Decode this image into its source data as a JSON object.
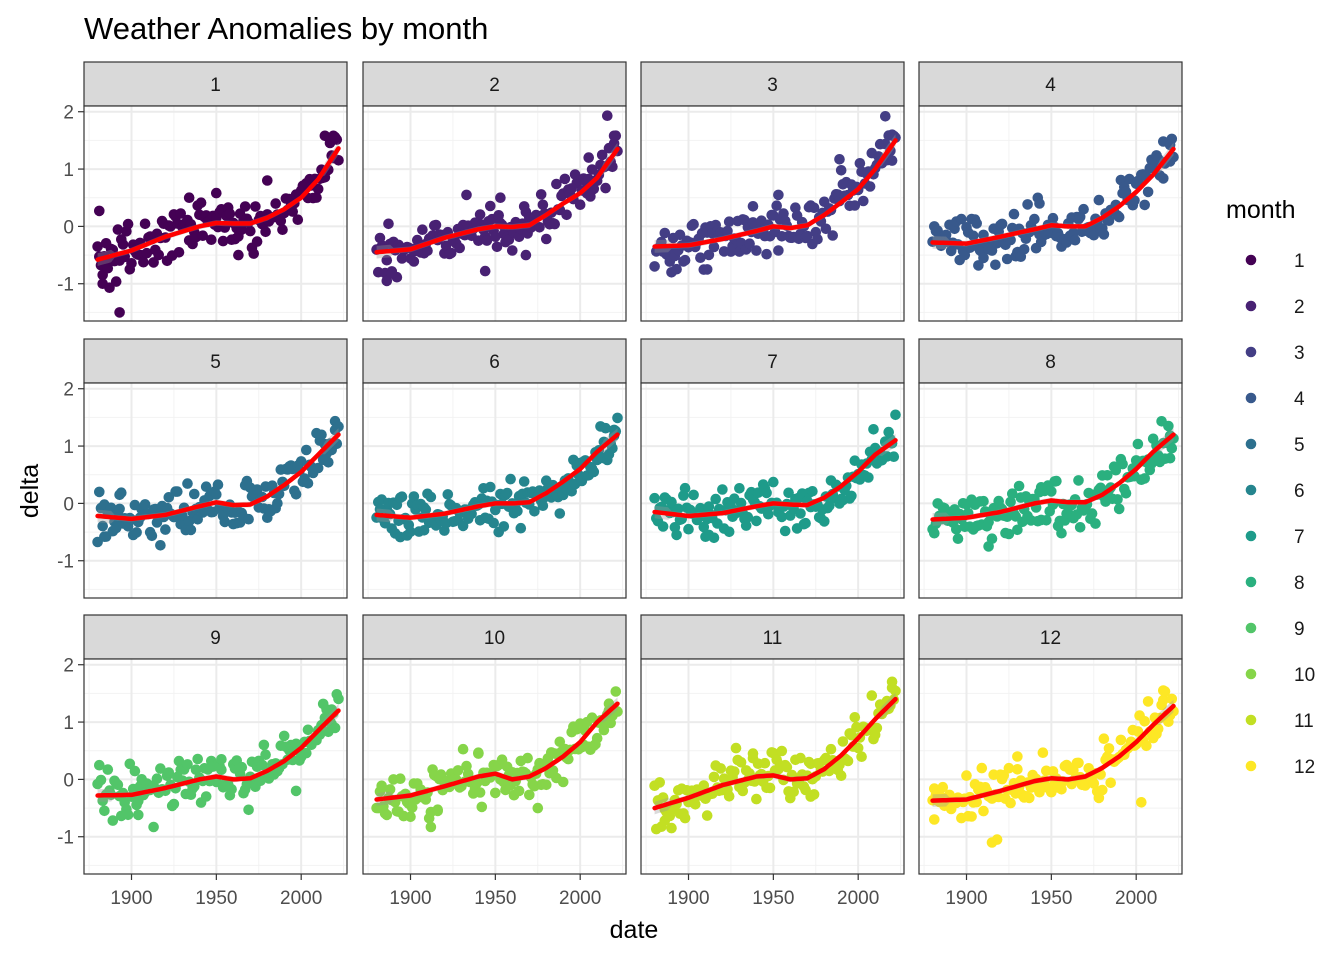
{
  "chart_data": {
    "type": "scatter",
    "title": "Weather Anomalies by month",
    "xlabel": "date",
    "ylabel": "delta",
    "xlim": [
      1872,
      2027
    ],
    "ylim": [
      -1.65,
      2.1
    ],
    "x_ticks": [
      1900,
      1950,
      2000
    ],
    "y_ticks": [
      2,
      1,
      0,
      -1
    ],
    "x_tick_labels": [
      "1900",
      "1950",
      "2000"
    ],
    "y_tick_labels": [
      "2",
      "1",
      "0",
      "-1"
    ],
    "facet_by": "month",
    "grid": true,
    "smooth_color": "#ff0000",
    "legend": {
      "title": "month",
      "position": "right",
      "entries": [
        {
          "label": "1",
          "color": "#440154"
        },
        {
          "label": "2",
          "color": "#482173"
        },
        {
          "label": "3",
          "color": "#433e85"
        },
        {
          "label": "4",
          "color": "#38598c"
        },
        {
          "label": "5",
          "color": "#2d708e"
        },
        {
          "label": "6",
          "color": "#25858e"
        },
        {
          "label": "7",
          "color": "#1e9b8a"
        },
        {
          "label": "8",
          "color": "#2ab07f"
        },
        {
          "label": "9",
          "color": "#52c569"
        },
        {
          "label": "10",
          "color": "#86d549"
        },
        {
          "label": "11",
          "color": "#c2df23"
        },
        {
          "label": "12",
          "color": "#fde725"
        }
      ]
    },
    "panels": [
      {
        "label": "1",
        "color": "#440154",
        "trend": [
          [
            1880,
            -0.58
          ],
          [
            1900,
            -0.42
          ],
          [
            1920,
            -0.18
          ],
          [
            1940,
            0.0
          ],
          [
            1950,
            0.06
          ],
          [
            1960,
            0.05
          ],
          [
            1970,
            0.05
          ],
          [
            1980,
            0.15
          ],
          [
            1990,
            0.3
          ],
          [
            2000,
            0.5
          ],
          [
            2010,
            0.82
          ],
          [
            2022,
            1.36
          ]
        ],
        "outliers": [
          [
            1883,
            -1.0
          ],
          [
            1887,
            -1.07
          ],
          [
            1893,
            -1.5
          ],
          [
            1881,
            0.27
          ],
          [
            1934,
            0.5
          ],
          [
            1950,
            0.58
          ],
          [
            1963,
            -0.5
          ],
          [
            1980,
            0.8
          ],
          [
            2014,
            1.58
          ],
          [
            2019,
            1.58
          ],
          [
            2020,
            1.55
          ]
        ]
      },
      {
        "label": "2",
        "color": "#482173",
        "trend": [
          [
            1880,
            -0.45
          ],
          [
            1900,
            -0.4
          ],
          [
            1920,
            -0.2
          ],
          [
            1940,
            -0.05
          ],
          [
            1950,
            0.0
          ],
          [
            1960,
            -0.01
          ],
          [
            1970,
            0.02
          ],
          [
            1980,
            0.2
          ],
          [
            1990,
            0.4
          ],
          [
            2000,
            0.58
          ],
          [
            2010,
            0.85
          ],
          [
            2022,
            1.35
          ]
        ],
        "outliers": [
          [
            1886,
            -0.95
          ],
          [
            1889,
            -0.82
          ],
          [
            1944,
            -0.78
          ],
          [
            1968,
            -0.5
          ],
          [
            1933,
            0.55
          ],
          [
            1953,
            0.5
          ],
          [
            2005,
            1.2
          ],
          [
            2016,
            1.93
          ],
          [
            2020,
            1.58
          ]
        ]
      },
      {
        "label": "3",
        "color": "#433e85",
        "trend": [
          [
            1880,
            -0.35
          ],
          [
            1900,
            -0.33
          ],
          [
            1920,
            -0.22
          ],
          [
            1940,
            -0.08
          ],
          [
            1950,
            0.0
          ],
          [
            1960,
            -0.03
          ],
          [
            1970,
            0.02
          ],
          [
            1980,
            0.2
          ],
          [
            1990,
            0.42
          ],
          [
            2000,
            0.65
          ],
          [
            2010,
            1.0
          ],
          [
            2022,
            1.5
          ]
        ],
        "outliers": [
          [
            1890,
            -0.8
          ],
          [
            1911,
            -0.75
          ],
          [
            1938,
            0.35
          ],
          [
            1953,
            0.55
          ],
          [
            1989,
            1.17
          ],
          [
            2016,
            1.92
          ],
          [
            2020,
            1.6
          ]
        ]
      },
      {
        "label": "4",
        "color": "#38598c",
        "trend": [
          [
            1880,
            -0.28
          ],
          [
            1900,
            -0.3
          ],
          [
            1920,
            -0.18
          ],
          [
            1940,
            -0.05
          ],
          [
            1950,
            0.02
          ],
          [
            1960,
            0.0
          ],
          [
            1970,
            0.0
          ],
          [
            1980,
            0.15
          ],
          [
            1990,
            0.35
          ],
          [
            2000,
            0.6
          ],
          [
            2010,
            0.9
          ],
          [
            2022,
            1.35
          ]
        ],
        "outliers": [
          [
            1907,
            -0.68
          ],
          [
            1943,
            0.4
          ],
          [
            1910,
            -0.55
          ],
          [
            2016,
            1.48
          ],
          [
            2020,
            1.42
          ]
        ]
      },
      {
        "label": "5",
        "color": "#2d708e",
        "trend": [
          [
            1880,
            -0.22
          ],
          [
            1900,
            -0.27
          ],
          [
            1920,
            -0.2
          ],
          [
            1940,
            -0.05
          ],
          [
            1950,
            0.02
          ],
          [
            1960,
            -0.03
          ],
          [
            1970,
            -0.02
          ],
          [
            1980,
            0.12
          ],
          [
            1990,
            0.32
          ],
          [
            2000,
            0.55
          ],
          [
            2010,
            0.85
          ],
          [
            2022,
            1.2
          ]
        ],
        "outliers": [
          [
            1884,
            -0.58
          ],
          [
            1917,
            -0.73
          ],
          [
            1893,
            0.15
          ],
          [
            2020,
            1.28
          ]
        ]
      },
      {
        "label": "6",
        "color": "#25858e",
        "trend": [
          [
            1880,
            -0.2
          ],
          [
            1900,
            -0.25
          ],
          [
            1920,
            -0.18
          ],
          [
            1940,
            -0.05
          ],
          [
            1950,
            0.0
          ],
          [
            1960,
            0.0
          ],
          [
            1970,
            0.02
          ],
          [
            1980,
            0.18
          ],
          [
            1990,
            0.38
          ],
          [
            2000,
            0.6
          ],
          [
            2010,
            0.9
          ],
          [
            2022,
            1.2
          ]
        ],
        "outliers": [
          [
            1908,
            -0.47
          ],
          [
            1894,
            0.1
          ],
          [
            2020,
            1.18
          ]
        ]
      },
      {
        "label": "7",
        "color": "#1e9b8a",
        "trend": [
          [
            1880,
            -0.15
          ],
          [
            1900,
            -0.22
          ],
          [
            1920,
            -0.17
          ],
          [
            1940,
            -0.05
          ],
          [
            1950,
            0.0
          ],
          [
            1960,
            -0.02
          ],
          [
            1970,
            -0.03
          ],
          [
            1980,
            0.1
          ],
          [
            1990,
            0.3
          ],
          [
            2000,
            0.55
          ],
          [
            2010,
            0.85
          ],
          [
            2022,
            1.1
          ]
        ],
        "outliers": [
          [
            1893,
            -0.55
          ],
          [
            1912,
            -0.55
          ],
          [
            2016,
            1.08
          ]
        ]
      },
      {
        "label": "8",
        "color": "#2ab07f",
        "trend": [
          [
            1880,
            -0.28
          ],
          [
            1900,
            -0.25
          ],
          [
            1920,
            -0.15
          ],
          [
            1940,
            0.0
          ],
          [
            1950,
            0.05
          ],
          [
            1960,
            0.02
          ],
          [
            1970,
            0.02
          ],
          [
            1980,
            0.15
          ],
          [
            1990,
            0.35
          ],
          [
            2000,
            0.6
          ],
          [
            2010,
            0.9
          ],
          [
            2022,
            1.2
          ]
        ],
        "outliers": [
          [
            1913,
            -0.75
          ],
          [
            1944,
            0.28
          ],
          [
            2020,
            1.18
          ]
        ]
      },
      {
        "label": "9",
        "color": "#52c569",
        "trend": [
          [
            1880,
            -0.28
          ],
          [
            1900,
            -0.27
          ],
          [
            1920,
            -0.15
          ],
          [
            1940,
            0.0
          ],
          [
            1950,
            0.05
          ],
          [
            1960,
            0.0
          ],
          [
            1970,
            0.02
          ],
          [
            1980,
            0.15
          ],
          [
            1990,
            0.32
          ],
          [
            2000,
            0.55
          ],
          [
            2010,
            0.85
          ],
          [
            2022,
            1.2
          ]
        ],
        "outliers": [
          [
            1913,
            -0.83
          ],
          [
            1904,
            -0.62
          ],
          [
            1953,
            0.35
          ],
          [
            1997,
            -0.2
          ],
          [
            2018,
            1.22
          ]
        ]
      },
      {
        "label": "10",
        "color": "#86d549",
        "trend": [
          [
            1880,
            -0.35
          ],
          [
            1900,
            -0.28
          ],
          [
            1920,
            -0.12
          ],
          [
            1940,
            0.05
          ],
          [
            1950,
            0.1
          ],
          [
            1960,
            0.0
          ],
          [
            1970,
            0.05
          ],
          [
            1980,
            0.2
          ],
          [
            1990,
            0.4
          ],
          [
            2000,
            0.65
          ],
          [
            2010,
            1.0
          ],
          [
            2022,
            1.32
          ]
        ],
        "outliers": [
          [
            1912,
            -0.83
          ],
          [
            1916,
            -0.55
          ],
          [
            1940,
            0.45
          ],
          [
            1975,
            -0.5
          ],
          [
            2017,
            1.32
          ]
        ]
      },
      {
        "label": "11",
        "color": "#c2df23",
        "trend": [
          [
            1880,
            -0.5
          ],
          [
            1900,
            -0.32
          ],
          [
            1920,
            -0.1
          ],
          [
            1940,
            0.05
          ],
          [
            1950,
            0.07
          ],
          [
            1960,
            0.0
          ],
          [
            1970,
            0.02
          ],
          [
            1980,
            0.18
          ],
          [
            1990,
            0.42
          ],
          [
            2000,
            0.72
          ],
          [
            2010,
            1.05
          ],
          [
            2022,
            1.4
          ]
        ],
        "outliers": [
          [
            1890,
            -0.85
          ],
          [
            1886,
            -0.72
          ],
          [
            1938,
            0.45
          ],
          [
            1972,
            -0.3
          ],
          [
            2020,
            1.6
          ]
        ]
      },
      {
        "label": "12",
        "color": "#fde725",
        "trend": [
          [
            1880,
            -0.37
          ],
          [
            1900,
            -0.35
          ],
          [
            1920,
            -0.2
          ],
          [
            1940,
            -0.03
          ],
          [
            1950,
            0.02
          ],
          [
            1960,
            0.0
          ],
          [
            1970,
            0.05
          ],
          [
            1980,
            0.2
          ],
          [
            1990,
            0.4
          ],
          [
            2000,
            0.65
          ],
          [
            2010,
            0.95
          ],
          [
            2022,
            1.28
          ]
        ],
        "outliers": [
          [
            1915,
            -1.1
          ],
          [
            1918,
            -1.05
          ],
          [
            1881,
            -0.7
          ],
          [
            1930,
            0.4
          ],
          [
            2016,
            1.55
          ],
          [
            2003,
            -0.4
          ]
        ]
      }
    ]
  }
}
